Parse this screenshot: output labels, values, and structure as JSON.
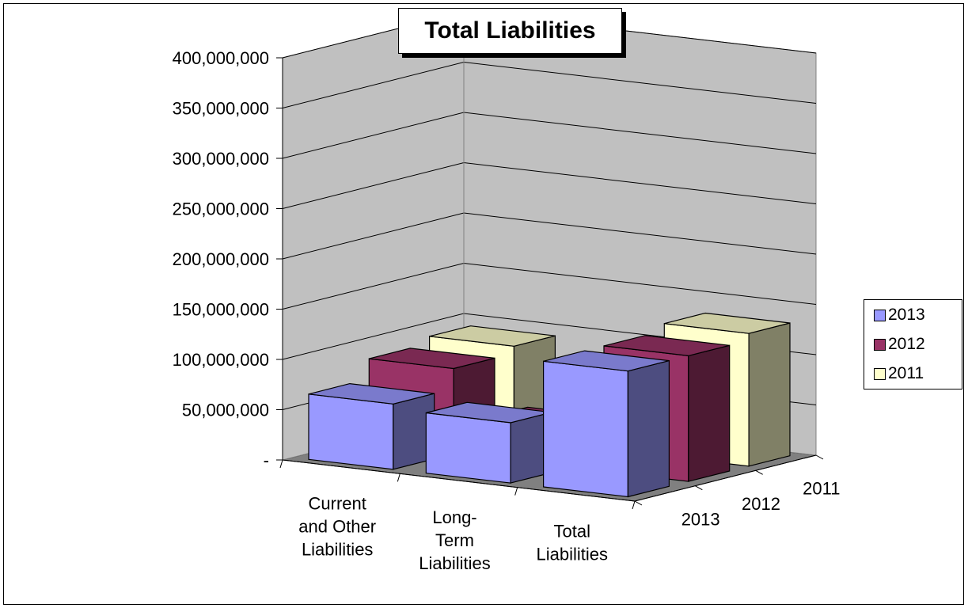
{
  "chart_data": {
    "type": "bar",
    "title": "Total Liabilities",
    "categories": [
      "Current and Other Liabilities",
      "Long-Term Liabilities",
      "Total Liabilities"
    ],
    "category_lines": [
      [
        "Current",
        "and Other",
        "Liabilities"
      ],
      [
        "Long-",
        "Term",
        "Liabilities"
      ],
      [
        "Total",
        "Liabilities"
      ]
    ],
    "series": [
      {
        "name": "2013",
        "values": [
          65000000,
          60000000,
          125000000
        ],
        "color": "#9999ff"
      },
      {
        "name": "2012",
        "values": [
          85000000,
          40000000,
          125000000
        ],
        "color": "#993366"
      },
      {
        "name": "2011",
        "values": [
          92000000,
          0,
          132000000
        ],
        "color": "#ffffcc"
      }
    ],
    "depth_axis_labels": [
      "2013",
      "2012",
      "2011"
    ],
    "y_ticks": [
      "-",
      "50,000,000",
      "100,000,000",
      "150,000,000",
      "200,000,000",
      "250,000,000",
      "300,000,000",
      "350,000,000",
      "400,000,000"
    ],
    "ylim": [
      0,
      400000000
    ],
    "grid": true,
    "legend": "right",
    "style": "3d-clustered-column"
  }
}
